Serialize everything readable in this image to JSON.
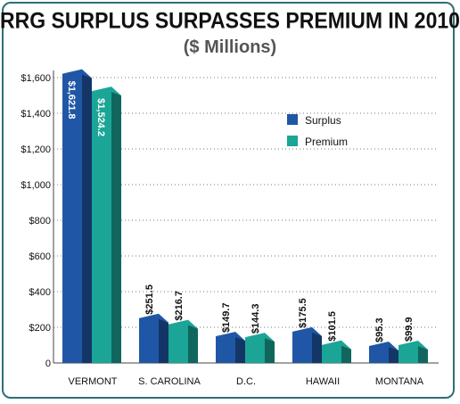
{
  "chart_data": {
    "type": "bar",
    "title": "RRG SURPLUS SURPASSES PREMIUM IN 2010",
    "subtitle": "($ Millions)",
    "categories": [
      "VERMONT",
      "S. CAROLINA",
      "D.C.",
      "HAWAII",
      "MONTANA"
    ],
    "series": [
      {
        "name": "Surplus",
        "values": [
          1621.8,
          251.5,
          149.7,
          175.5,
          95.3
        ],
        "labels": [
          "$1,621.8",
          "$251.5",
          "$149.7",
          "$175.5",
          "$95.3"
        ],
        "color": "#1f57a6"
      },
      {
        "name": "Premium",
        "values": [
          1524.2,
          216.7,
          144.3,
          101.5,
          99.9
        ],
        "labels": [
          "$1,524.2",
          "$216.7",
          "$144.3",
          "$101.5",
          "$99.9"
        ],
        "color": "#1aa596"
      }
    ],
    "yticks": [
      0,
      200,
      400,
      600,
      800,
      1000,
      1200,
      1400,
      1600
    ],
    "ytick_labels": [
      "0",
      "$200",
      "$400",
      "$600",
      "$800",
      "$1,000",
      "$1,200",
      "$1,400",
      "$1,600"
    ],
    "ylim": [
      0,
      1600
    ],
    "grid": true,
    "legend_position": "top-right"
  }
}
